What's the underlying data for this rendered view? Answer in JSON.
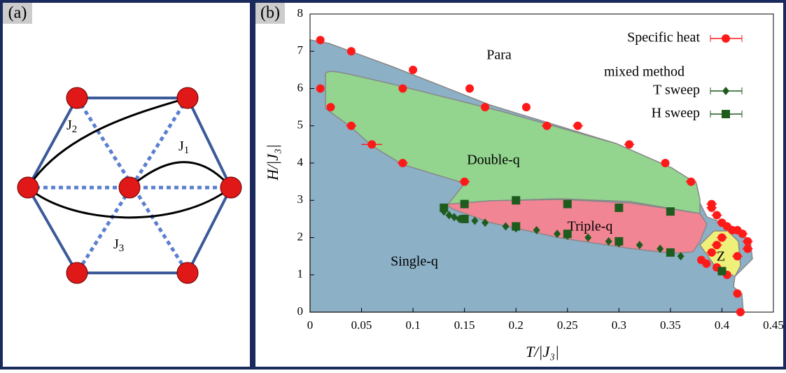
{
  "panel_a": {
    "label": "(a)",
    "bonds": [
      {
        "symbol": "J",
        "index": "2"
      },
      {
        "symbol": "J",
        "index": "1"
      },
      {
        "symbol": "J",
        "index": "3"
      }
    ]
  },
  "chart_data": {
    "type": "scatter",
    "panel_label": "(b)",
    "x_label": "T/|J₃|",
    "y_label": "H/|J₃|",
    "xlim": [
      0,
      0.45
    ],
    "ylim": [
      0,
      8
    ],
    "xticks": [
      0,
      0.05,
      0.1,
      0.15,
      0.2,
      0.25,
      0.3,
      0.35,
      0.4,
      0.45
    ],
    "yticks": [
      0,
      1,
      2,
      3,
      4,
      5,
      6,
      7,
      8
    ],
    "regions": [
      "Para",
      "Double-q",
      "Triple-q",
      "Single-q",
      "Z"
    ],
    "legend_header": "mixed method",
    "series": [
      {
        "name": "Specific heat",
        "color": "#ff1a1a",
        "marker": "circle",
        "x": [
          0.01,
          0.04,
          0.1,
          0.155,
          0.21,
          0.26,
          0.31,
          0.345,
          0.37,
          0.01,
          0.02,
          0.04,
          0.06,
          0.09,
          0.15,
          0.09,
          0.17,
          0.23,
          0.39,
          0.39,
          0.395,
          0.4,
          0.405,
          0.41,
          0.415,
          0.42,
          0.425,
          0.425,
          0.415,
          0.4,
          0.395,
          0.39,
          0.38,
          0.385,
          0.395,
          0.4,
          0.405,
          0.415,
          0.418
        ],
        "values": [
          7.3,
          7.0,
          6.5,
          6.0,
          5.5,
          5.0,
          4.5,
          4.0,
          3.5,
          6.0,
          5.5,
          5.0,
          4.5,
          4.0,
          3.5,
          6.0,
          5.5,
          5.0,
          2.9,
          2.8,
          2.6,
          2.4,
          2.3,
          2.2,
          2.2,
          2.1,
          1.9,
          1.7,
          1.5,
          2.0,
          1.8,
          1.6,
          1.4,
          1.3,
          1.2,
          1.1,
          1.0,
          0.5,
          0.0
        ],
        "xerr": [
          0,
          0,
          0,
          0,
          0,
          0.005,
          0.005,
          0,
          0.005,
          0,
          0,
          0.005,
          0.01,
          0.005,
          0.005,
          0,
          0,
          0.005,
          0.005,
          0.005,
          0.005,
          0.005,
          0.005,
          0.005,
          0.005,
          0.005,
          0.005,
          0.005,
          0.005,
          0.005,
          0.005,
          0.005,
          0,
          0,
          0,
          0,
          0,
          0,
          0
        ]
      },
      {
        "name": "T sweep",
        "color": "#1e5c1e",
        "marker": "diamond",
        "x": [
          0.13,
          0.13,
          0.135,
          0.14,
          0.145,
          0.15,
          0.16,
          0.17,
          0.19,
          0.2,
          0.22,
          0.24,
          0.25,
          0.27,
          0.29,
          0.3,
          0.32,
          0.34,
          0.36
        ],
        "values": [
          2.75,
          2.7,
          2.6,
          2.55,
          2.5,
          2.5,
          2.45,
          2.4,
          2.3,
          2.25,
          2.2,
          2.1,
          2.05,
          2.0,
          1.9,
          1.85,
          1.8,
          1.7,
          1.5
        ]
      },
      {
        "name": "H sweep",
        "color": "#1e5c1e",
        "marker": "square",
        "x": [
          0.13,
          0.15,
          0.15,
          0.2,
          0.2,
          0.25,
          0.25,
          0.3,
          0.3,
          0.35,
          0.35,
          0.4
        ],
        "values": [
          2.8,
          2.9,
          2.5,
          3.0,
          2.3,
          2.9,
          2.1,
          2.8,
          1.9,
          2.7,
          1.6,
          1.1
        ]
      }
    ]
  }
}
